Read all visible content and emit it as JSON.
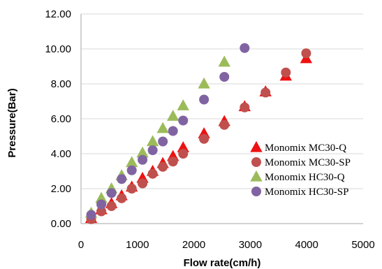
{
  "chart_data": {
    "type": "scatter",
    "title": "",
    "xlabel": "Flow rate(cm/h)",
    "ylabel": "Pressure(Bar)",
    "xlim": [
      0,
      5000
    ],
    "ylim": [
      0,
      12
    ],
    "x_ticks": [
      "0",
      "1000",
      "2000",
      "3000",
      "4000",
      "5000"
    ],
    "y_ticks": [
      "0.00",
      "2.00",
      "4.00",
      "6.00",
      "8.00",
      "10.00",
      "12.00"
    ],
    "grid": "horizontal",
    "legend_position": "bottom-right",
    "series": [
      {
        "name": "Monomix MC30-Q",
        "marker": "triangle",
        "color": "#ee1111",
        "points": [
          [
            180,
            0.3
          ],
          [
            360,
            0.8
          ],
          [
            540,
            1.15
          ],
          [
            720,
            1.6
          ],
          [
            900,
            2.1
          ],
          [
            1090,
            2.6
          ],
          [
            1270,
            3.0
          ],
          [
            1450,
            3.45
          ],
          [
            1630,
            3.85
          ],
          [
            1810,
            4.35
          ],
          [
            2180,
            5.15
          ],
          [
            2540,
            5.85
          ],
          [
            2900,
            6.7
          ],
          [
            3270,
            7.55
          ],
          [
            3630,
            8.45
          ],
          [
            3990,
            9.45
          ]
        ]
      },
      {
        "name": "Monomix MC30-SP",
        "marker": "circle",
        "color": "#c0504d",
        "points": [
          [
            180,
            0.25
          ],
          [
            360,
            0.7
          ],
          [
            540,
            1.0
          ],
          [
            720,
            1.45
          ],
          [
            900,
            2.0
          ],
          [
            1090,
            2.3
          ],
          [
            1270,
            2.85
          ],
          [
            1450,
            3.25
          ],
          [
            1630,
            3.55
          ],
          [
            1810,
            4.0
          ],
          [
            2180,
            4.85
          ],
          [
            2540,
            5.65
          ],
          [
            2900,
            6.65
          ],
          [
            3270,
            7.5
          ],
          [
            3630,
            8.65
          ],
          [
            3990,
            9.75
          ]
        ]
      },
      {
        "name": "Monomix HC30-Q",
        "marker": "triangle",
        "color": "#9bbb59",
        "points": [
          [
            180,
            0.6
          ],
          [
            360,
            1.45
          ],
          [
            540,
            2.0
          ],
          [
            720,
            2.75
          ],
          [
            900,
            3.5
          ],
          [
            1090,
            4.05
          ],
          [
            1270,
            4.7
          ],
          [
            1450,
            5.45
          ],
          [
            1630,
            6.15
          ],
          [
            1810,
            6.75
          ],
          [
            2180,
            8.0
          ],
          [
            2540,
            9.25
          ]
        ]
      },
      {
        "name": "Monomix HC30-SP",
        "marker": "circle",
        "color": "#8064a2",
        "points": [
          [
            180,
            0.5
          ],
          [
            360,
            1.1
          ],
          [
            540,
            1.75
          ],
          [
            720,
            2.55
          ],
          [
            900,
            3.05
          ],
          [
            1090,
            3.65
          ],
          [
            1270,
            4.2
          ],
          [
            1450,
            4.7
          ],
          [
            1630,
            5.3
          ],
          [
            1810,
            5.9
          ],
          [
            2180,
            7.1
          ],
          [
            2540,
            8.4
          ],
          [
            2900,
            10.05
          ]
        ]
      }
    ]
  }
}
